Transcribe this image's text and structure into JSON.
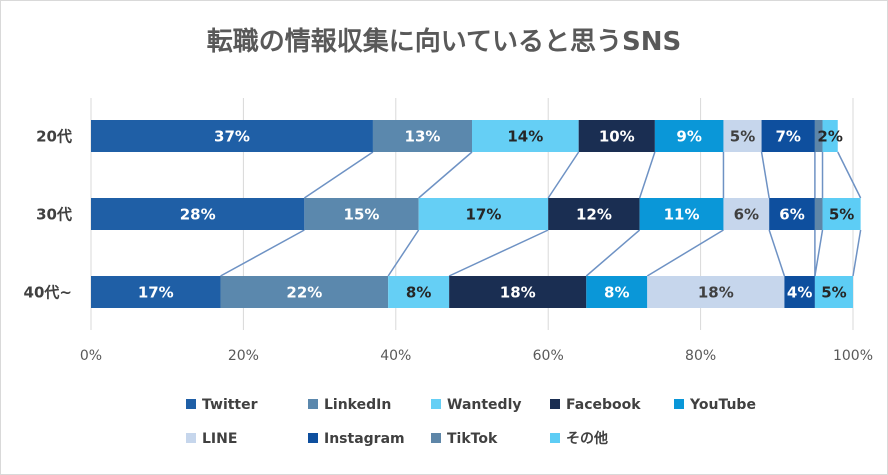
{
  "chart_data": {
    "type": "bar",
    "orientation": "horizontal",
    "stacked": "percent",
    "title": "転職の情報収集に向いていると思うSNS",
    "categories": [
      "20代",
      "30代",
      "40代~"
    ],
    "series": [
      {
        "name": "Twitter",
        "color": "#1F5FA6",
        "label_color": "#ffffff",
        "values": [
          37,
          28,
          17
        ],
        "labels": [
          "37%",
          "28%",
          "17%"
        ]
      },
      {
        "name": "LinkedIn",
        "color": "#5B88AD",
        "label_color": "#ffffff",
        "values": [
          13,
          15,
          22
        ],
        "labels": [
          "13%",
          "15%",
          "22%"
        ]
      },
      {
        "name": "Wantedly",
        "color": "#65CFF5",
        "label_color": "#262626",
        "values": [
          14,
          17,
          8
        ],
        "labels": [
          "14%",
          "17%",
          "8%"
        ]
      },
      {
        "name": "Facebook",
        "color": "#1A2E52",
        "label_color": "#ffffff",
        "values": [
          10,
          12,
          18
        ],
        "labels": [
          "10%",
          "12%",
          "18%"
        ]
      },
      {
        "name": "YouTube",
        "color": "#0A97D8",
        "label_color": "#ffffff",
        "values": [
          9,
          11,
          8
        ],
        "labels": [
          "9%",
          "11%",
          "8%"
        ]
      },
      {
        "name": "LINE",
        "color": "#C6D6EC",
        "label_color": "#404040",
        "values": [
          5,
          6,
          18
        ],
        "labels": [
          "5%",
          "6%",
          "18%"
        ]
      },
      {
        "name": "Instagram",
        "color": "#0E4F9E",
        "label_color": "#ffffff",
        "values": [
          7,
          6,
          4
        ],
        "labels": [
          "7%",
          "6%",
          "4%"
        ]
      },
      {
        "name": "TikTok",
        "color": "#5E86A8",
        "label_color": "#ffffff",
        "values": [
          1,
          1,
          0
        ],
        "labels": [
          "",
          "",
          ""
        ]
      },
      {
        "name": "その他",
        "color": "#5DCDF5",
        "label_color": "#262626",
        "values": [
          2,
          5,
          5
        ],
        "labels": [
          "2%",
          "5%",
          "5%"
        ]
      }
    ],
    "xlim": [
      0,
      100
    ],
    "xticks": [
      0,
      20,
      40,
      60,
      80,
      100
    ],
    "xtick_labels": [
      "0%",
      "20%",
      "40%",
      "60%",
      "80%",
      "100%"
    ],
    "gridlines": true,
    "series_lines": true,
    "series_line_color": "#6E92C4",
    "legend_position": "bottom",
    "xlabel": "",
    "ylabel": ""
  }
}
